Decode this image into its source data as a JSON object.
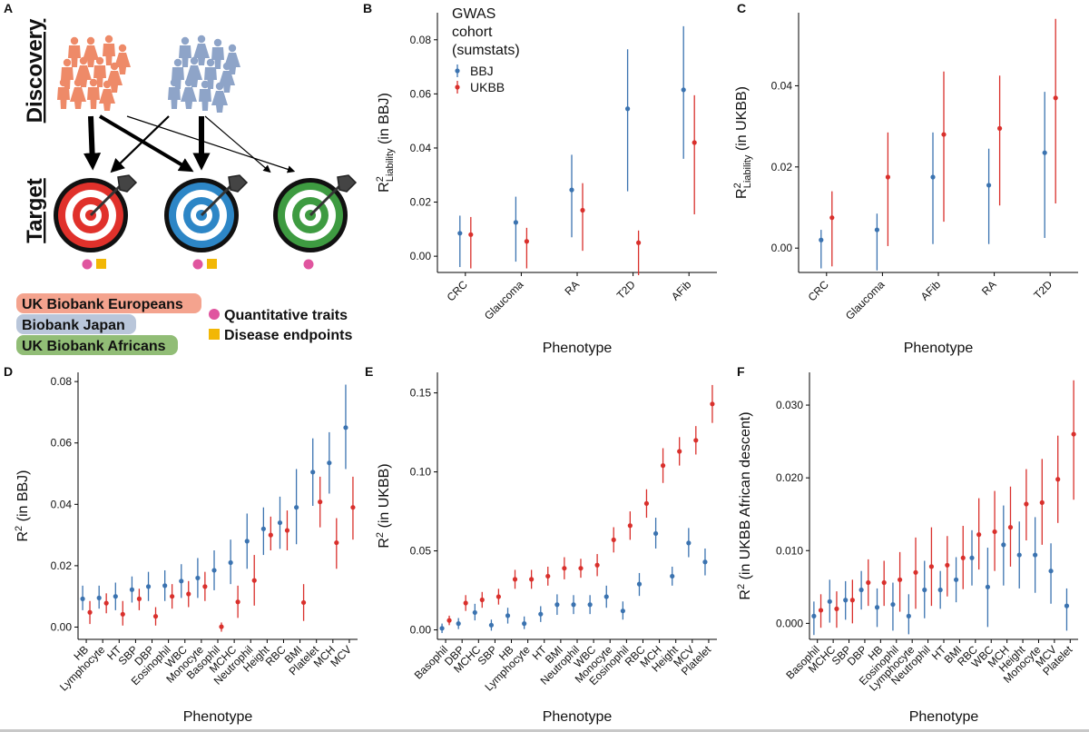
{
  "colors": {
    "bbj": "#3b73b0",
    "ukbb": "#d9302c",
    "eur_box": "#f4a38e",
    "jpn_box": "#b9c6da",
    "afr_box": "#91bd76",
    "quant": "#e0559f",
    "disease": "#f2b705"
  },
  "panel_a": {
    "label": "A",
    "discovery": "Discovery",
    "target": "Target",
    "legend": {
      "eur": "UK Biobank Europeans",
      "jpn": "Biobank Japan",
      "afr": "UK Biobank Africans",
      "quant": "Quantitative traits",
      "disease": "Disease endpoints"
    },
    "icons": {
      "people": "people-group-icon",
      "target": "target-with-arrow-icon",
      "circle": "quantitative-trait-marker-icon",
      "square": "disease-endpoint-marker-icon"
    }
  },
  "chart_data": [
    {
      "id": "B",
      "panel_label": "B",
      "type": "scatter",
      "title": "",
      "xlabel": "Phenotype",
      "ylabel_main": "R",
      "ylabel_sup": "2",
      "ylabel_sub": "Liability",
      "ylabel_rest": " (in BBJ)",
      "ylim": [
        -0.006,
        0.09
      ],
      "yticks": [
        0.0,
        0.02,
        0.04,
        0.06,
        0.08
      ],
      "ytick_labels": [
        "0.00",
        "0.02",
        "0.04",
        "0.06",
        "0.08"
      ],
      "categories": [
        "CRC",
        "Glaucoma",
        "RA",
        "T2D",
        "AFib"
      ],
      "legend": {
        "title_lines": [
          "GWAS",
          "cohort",
          "(sumstats)"
        ],
        "items": [
          "BBJ",
          "UKBB"
        ]
      },
      "series": [
        {
          "name": "BBJ",
          "values": [
            0.0085,
            0.0125,
            0.0245,
            0.0545,
            0.0615
          ],
          "lower": [
            -0.004,
            -0.002,
            0.007,
            0.024,
            0.036
          ],
          "upper": [
            0.015,
            0.022,
            0.0375,
            0.0765,
            0.085
          ]
        },
        {
          "name": "UKBB",
          "values": [
            0.008,
            0.0055,
            0.017,
            0.005,
            0.042
          ],
          "lower": [
            -0.0045,
            -0.0045,
            0.002,
            -0.007,
            0.0155
          ],
          "upper": [
            0.0145,
            0.0105,
            0.027,
            0.0095,
            0.0595
          ]
        }
      ]
    },
    {
      "id": "C",
      "panel_label": "C",
      "type": "scatter",
      "title": "",
      "xlabel": "Phenotype",
      "ylabel_main": "R",
      "ylabel_sup": "2",
      "ylabel_sub": "Liability",
      "ylabel_rest": " (in UKBB)",
      "ylim": [
        -0.006,
        0.058
      ],
      "yticks": [
        0.0,
        0.02,
        0.04
      ],
      "ytick_labels": [
        "0.00",
        "0.02",
        "0.04"
      ],
      "categories": [
        "CRC",
        "Glaucoma",
        "AFib",
        "RA",
        "T2D"
      ],
      "series": [
        {
          "name": "BBJ",
          "values": [
            0.002,
            0.0045,
            0.0175,
            0.0155,
            0.0235
          ],
          "lower": [
            -0.005,
            -0.0055,
            0.001,
            0.001,
            0.0025
          ],
          "upper": [
            0.0045,
            0.0085,
            0.0285,
            0.0245,
            0.0385
          ]
        },
        {
          "name": "UKBB",
          "values": [
            0.0075,
            0.0175,
            0.028,
            0.0295,
            0.037
          ],
          "lower": [
            -0.0045,
            0.0005,
            0.0065,
            0.0105,
            0.011
          ],
          "upper": [
            0.014,
            0.0285,
            0.0435,
            0.0425,
            0.0565
          ]
        }
      ]
    },
    {
      "id": "D",
      "panel_label": "D",
      "type": "scatter",
      "title": "",
      "xlabel": "Phenotype",
      "ylabel_main": "R",
      "ylabel_sup": "2",
      "ylabel_sub": "",
      "ylabel_rest": " (in BBJ)",
      "ylim": [
        -0.004,
        0.083
      ],
      "yticks": [
        0.0,
        0.02,
        0.04,
        0.06,
        0.08
      ],
      "ytick_labels": [
        "0.00",
        "0.02",
        "0.04",
        "0.06",
        "0.08"
      ],
      "categories": [
        "HB",
        "Lymphocyte",
        "HT",
        "SBP",
        "DBP",
        "Eosinophil",
        "WBC",
        "Monocyte",
        "Basophil",
        "MCHC",
        "Neutrophil",
        "Height",
        "RBC",
        "BMI",
        "Platelet",
        "MCH",
        "MCV"
      ],
      "series": [
        {
          "name": "BBJ",
          "values": [
            0.0092,
            0.0095,
            0.01,
            0.0122,
            0.0132,
            0.0135,
            0.015,
            0.016,
            0.0185,
            0.021,
            0.028,
            0.032,
            0.034,
            0.039,
            0.0505,
            0.0535,
            0.065
          ],
          "lower": [
            0.0055,
            0.006,
            0.0055,
            0.008,
            0.0085,
            0.0085,
            0.0095,
            0.0095,
            0.012,
            0.014,
            0.019,
            0.0235,
            0.0255,
            0.027,
            0.0395,
            0.0435,
            0.0515
          ],
          "upper": [
            0.0135,
            0.0135,
            0.0145,
            0.0165,
            0.018,
            0.0185,
            0.0205,
            0.0225,
            0.025,
            0.0285,
            0.037,
            0.039,
            0.0425,
            0.0515,
            0.0615,
            0.0635,
            0.079
          ]
        },
        {
          "name": "UKBB",
          "values": [
            0.0048,
            0.0078,
            0.0042,
            0.0092,
            0.0035,
            0.01,
            0.0108,
            0.0132,
            0.0001,
            0.0082,
            0.0152,
            0.03,
            0.0315,
            0.008,
            0.0408,
            0.0275,
            0.039
          ],
          "lower": [
            0.001,
            0.0045,
            0.0005,
            0.0055,
            0.0005,
            0.006,
            0.0065,
            0.0085,
            -0.0015,
            0.003,
            0.007,
            0.025,
            0.025,
            0.002,
            0.0325,
            0.019,
            0.0285
          ],
          "upper": [
            0.0085,
            0.011,
            0.0085,
            0.0125,
            0.0065,
            0.014,
            0.015,
            0.018,
            0.0015,
            0.0135,
            0.0235,
            0.036,
            0.038,
            0.014,
            0.049,
            0.0355,
            0.049
          ]
        }
      ]
    },
    {
      "id": "E",
      "panel_label": "E",
      "type": "scatter",
      "title": "",
      "xlabel": "Phenotype",
      "ylabel_main": "R",
      "ylabel_sup": "2",
      "ylabel_sub": "",
      "ylabel_rest": " (in UKBB)",
      "ylim": [
        -0.006,
        0.163
      ],
      "yticks": [
        0.0,
        0.05,
        0.1,
        0.15
      ],
      "ytick_labels": [
        "0.00",
        "0.05",
        "0.10",
        "0.15"
      ],
      "categories": [
        "Basophil",
        "DBP",
        "MCHC",
        "SBP",
        "HB",
        "Lymphocyte",
        "HT",
        "BMI",
        "Neutrophil",
        "WBC",
        "Monocyte",
        "Eosinophil",
        "RBC",
        "MCH",
        "Height",
        "MCV",
        "Platelet"
      ],
      "series": [
        {
          "name": "BBJ",
          "values": [
            0.001,
            0.004,
            0.011,
            0.003,
            0.009,
            0.004,
            0.01,
            0.016,
            0.016,
            0.016,
            0.021,
            0.012,
            0.029,
            0.061,
            0.034,
            0.055,
            0.043
          ],
          "lower": [
            -0.002,
            0.0005,
            0.006,
            -0.0005,
            0.004,
            0.0005,
            0.005,
            0.0095,
            0.01,
            0.01,
            0.014,
            0.0065,
            0.0215,
            0.0515,
            0.028,
            0.046,
            0.0345
          ],
          "upper": [
            0.004,
            0.0075,
            0.0165,
            0.0065,
            0.014,
            0.0085,
            0.015,
            0.0225,
            0.022,
            0.022,
            0.028,
            0.018,
            0.036,
            0.071,
            0.04,
            0.0645,
            0.0515
          ]
        },
        {
          "name": "UKBB",
          "values": [
            0.006,
            0.017,
            0.019,
            0.021,
            0.032,
            0.032,
            0.034,
            0.039,
            0.039,
            0.041,
            0.057,
            0.066,
            0.08,
            0.104,
            0.113,
            0.12,
            0.143
          ],
          "lower": [
            0.003,
            0.012,
            0.014,
            0.016,
            0.026,
            0.026,
            0.028,
            0.032,
            0.033,
            0.034,
            0.049,
            0.057,
            0.071,
            0.093,
            0.104,
            0.111,
            0.131
          ],
          "upper": [
            0.009,
            0.022,
            0.024,
            0.026,
            0.038,
            0.038,
            0.04,
            0.046,
            0.045,
            0.048,
            0.065,
            0.075,
            0.089,
            0.115,
            0.122,
            0.129,
            0.155
          ]
        }
      ]
    },
    {
      "id": "F",
      "panel_label": "F",
      "type": "scatter",
      "title": "",
      "xlabel": "Phenotype",
      "ylabel_main": "R",
      "ylabel_sup": "2",
      "ylabel_sub": "",
      "ylabel_rest": " (in UKBB African descent)",
      "ylim": [
        -0.0022,
        0.0345
      ],
      "yticks": [
        0.0,
        0.01,
        0.02,
        0.03
      ],
      "ytick_labels": [
        "0.000",
        "0.010",
        "0.020",
        "0.030"
      ],
      "categories": [
        "Basophil",
        "MCHC",
        "SBP",
        "DBP",
        "HB",
        "Eosinophil",
        "Lymphocyte",
        "Neutrophil",
        "HT",
        "BMI",
        "RBC",
        "WBC",
        "MCH",
        "Height",
        "Monocyte",
        "MCV",
        "Platelet"
      ],
      "series": [
        {
          "name": "BBJ",
          "values": [
            0.001,
            0.003,
            0.0032,
            0.0046,
            0.0022,
            0.0026,
            0.001,
            0.0046,
            0.0046,
            0.006,
            0.009,
            0.005,
            0.0108,
            0.0094,
            0.0094,
            0.0072,
            0.0024
          ],
          "lower": [
            -0.0016,
            0.0001,
            0.0005,
            0.0019,
            -0.0005,
            -0.001,
            -0.0015,
            0.0007,
            0.002,
            0.0029,
            0.0052,
            -0.0005,
            0.0052,
            0.0048,
            0.0042,
            0.0027,
            -0.001
          ],
          "upper": [
            0.003,
            0.006,
            0.0058,
            0.0072,
            0.0048,
            0.0056,
            0.004,
            0.0086,
            0.0072,
            0.0091,
            0.0128,
            0.0104,
            0.0162,
            0.014,
            0.0146,
            0.011,
            0.0048
          ]
        },
        {
          "name": "UKBB",
          "values": [
            0.0018,
            0.002,
            0.0032,
            0.0056,
            0.0056,
            0.006,
            0.007,
            0.0078,
            0.008,
            0.009,
            0.0122,
            0.0126,
            0.0132,
            0.0164,
            0.0166,
            0.0198,
            0.026
          ],
          "lower": [
            -0.0006,
            -0.0006,
            0.0,
            0.0024,
            0.0024,
            0.0016,
            0.002,
            0.0024,
            0.0037,
            0.0047,
            0.0074,
            0.0072,
            0.0078,
            0.0114,
            0.0108,
            0.0138,
            0.017
          ],
          "upper": [
            0.004,
            0.0044,
            0.006,
            0.0088,
            0.0086,
            0.0098,
            0.0118,
            0.0132,
            0.012,
            0.0134,
            0.0172,
            0.0182,
            0.0188,
            0.0212,
            0.0226,
            0.0258,
            0.0334
          ]
        }
      ]
    }
  ]
}
